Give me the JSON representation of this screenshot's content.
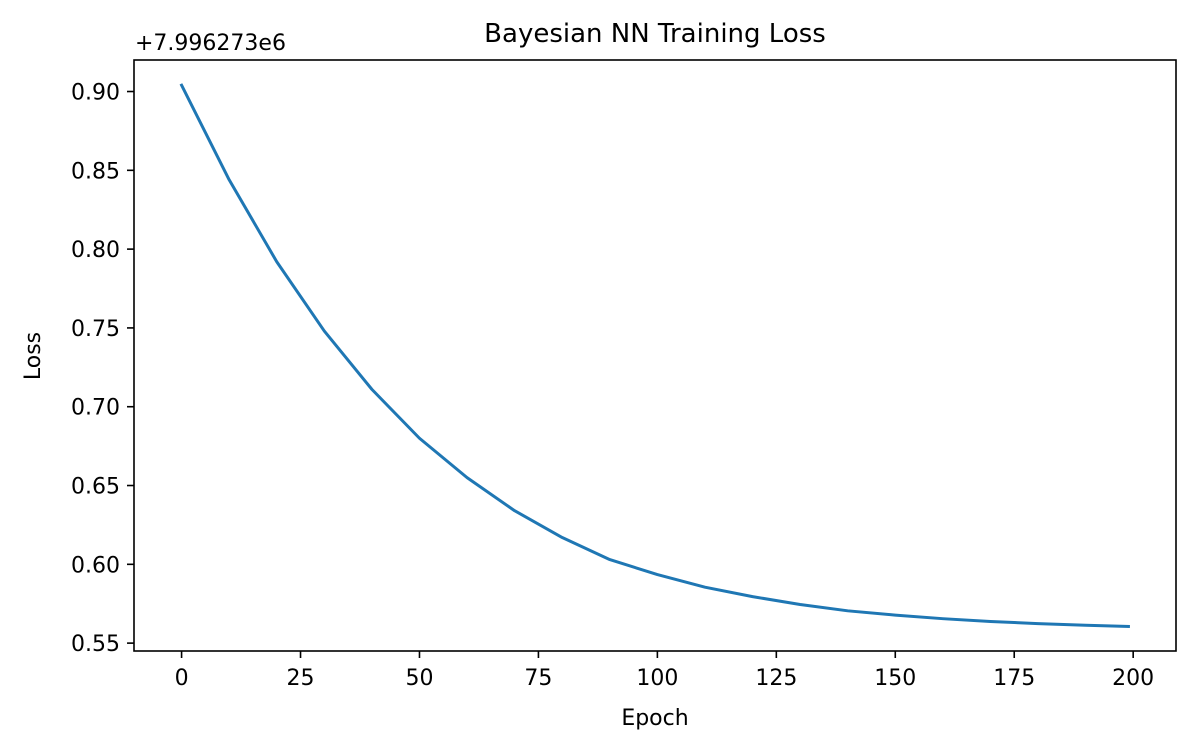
{
  "chart_data": {
    "type": "line",
    "title": "Bayesian NN Training Loss",
    "xlabel": "Epoch",
    "ylabel": "Loss",
    "y_offset_text": "+7.996273e6",
    "xlim": [
      -10,
      209
    ],
    "ylim": [
      0.545,
      0.92
    ],
    "grid": false,
    "xticks": [
      0,
      25,
      50,
      75,
      100,
      125,
      150,
      175,
      200
    ],
    "xtick_labels": [
      "0",
      "25",
      "50",
      "75",
      "100",
      "125",
      "150",
      "175",
      "200"
    ],
    "yticks": [
      0.55,
      0.6,
      0.65,
      0.7,
      0.75,
      0.8,
      0.85,
      0.9
    ],
    "ytick_labels": [
      "0.55",
      "0.60",
      "0.65",
      "0.70",
      "0.75",
      "0.80",
      "0.85",
      "0.90"
    ],
    "series": [
      {
        "color": "#1f77b4",
        "x": [
          0,
          10,
          20,
          30,
          40,
          50,
          60,
          70,
          80,
          90,
          100,
          110,
          120,
          130,
          140,
          150,
          160,
          170,
          180,
          190,
          199
        ],
        "y": [
          0.904,
          0.844,
          0.792,
          0.748,
          0.711,
          0.68,
          0.655,
          0.634,
          0.617,
          0.603,
          0.5935,
          0.5855,
          0.5795,
          0.5745,
          0.5705,
          0.5678,
          0.5655,
          0.5637,
          0.5624,
          0.5613,
          0.5606
        ]
      }
    ]
  }
}
